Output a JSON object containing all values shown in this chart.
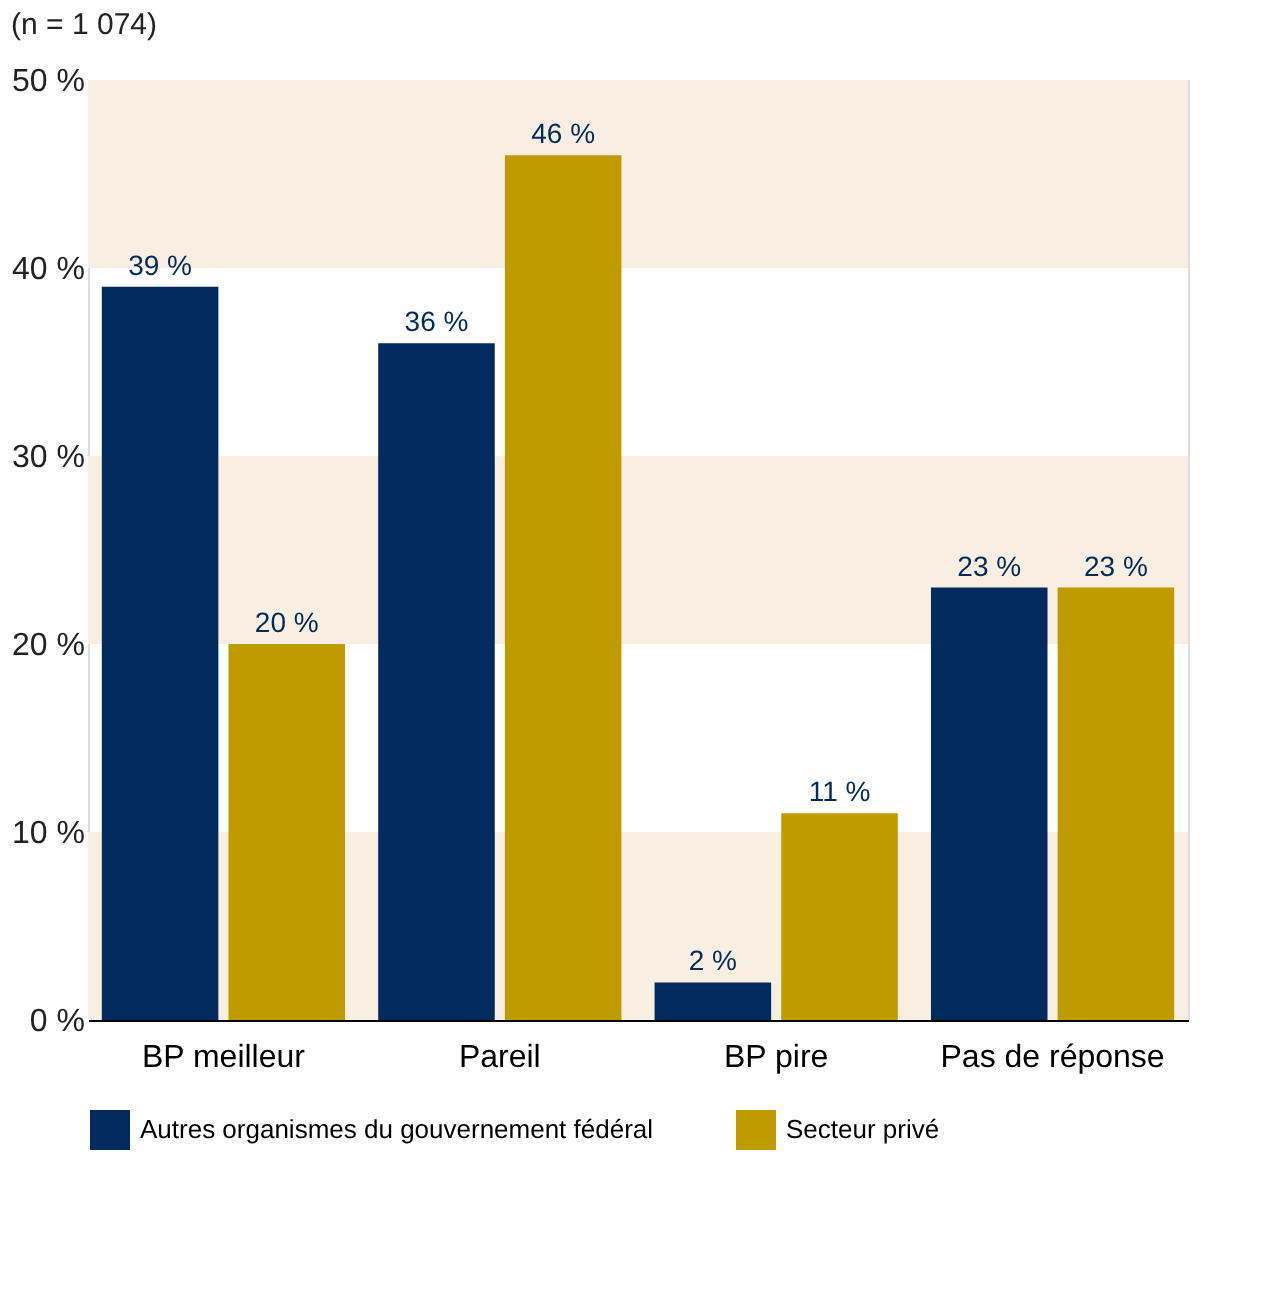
{
  "chart_data": {
    "type": "bar",
    "subtitle": "(n = 1 074)",
    "categories": [
      "BP meilleur",
      "Pareil",
      "BP pire",
      "Pas de réponse"
    ],
    "series": [
      {
        "name": "Autres organismes du gouvernement fédéral",
        "color": "#002b5c",
        "values": [
          39,
          36,
          2,
          23
        ],
        "value_labels": [
          "39 %",
          "36 %",
          "2 %",
          "23 %"
        ]
      },
      {
        "name": "Secteur privé",
        "color": "#bf9b00",
        "values": [
          20,
          46,
          11,
          23
        ],
        "value_labels": [
          "20 %",
          "46 %",
          "11 %",
          "23 %"
        ]
      }
    ],
    "ylim": [
      0,
      50
    ],
    "yticks": [
      {
        "value": 0,
        "label": "0 %"
      },
      {
        "value": 10,
        "label": "10 %"
      },
      {
        "value": 20,
        "label": "20 %"
      },
      {
        "value": 30,
        "label": "30 %"
      },
      {
        "value": 40,
        "label": "40 %"
      },
      {
        "value": 50,
        "label": "50 %"
      }
    ],
    "bands": [
      {
        "axis": "y",
        "from": 0,
        "to": 10,
        "color": "#f8efe2"
      },
      {
        "axis": "y",
        "from": 20,
        "to": 30,
        "color": "#f8efe2"
      },
      {
        "axis": "y",
        "from": 40,
        "to": 50,
        "color": "#f8efe2"
      }
    ],
    "grid": false,
    "legend": "bottom"
  }
}
